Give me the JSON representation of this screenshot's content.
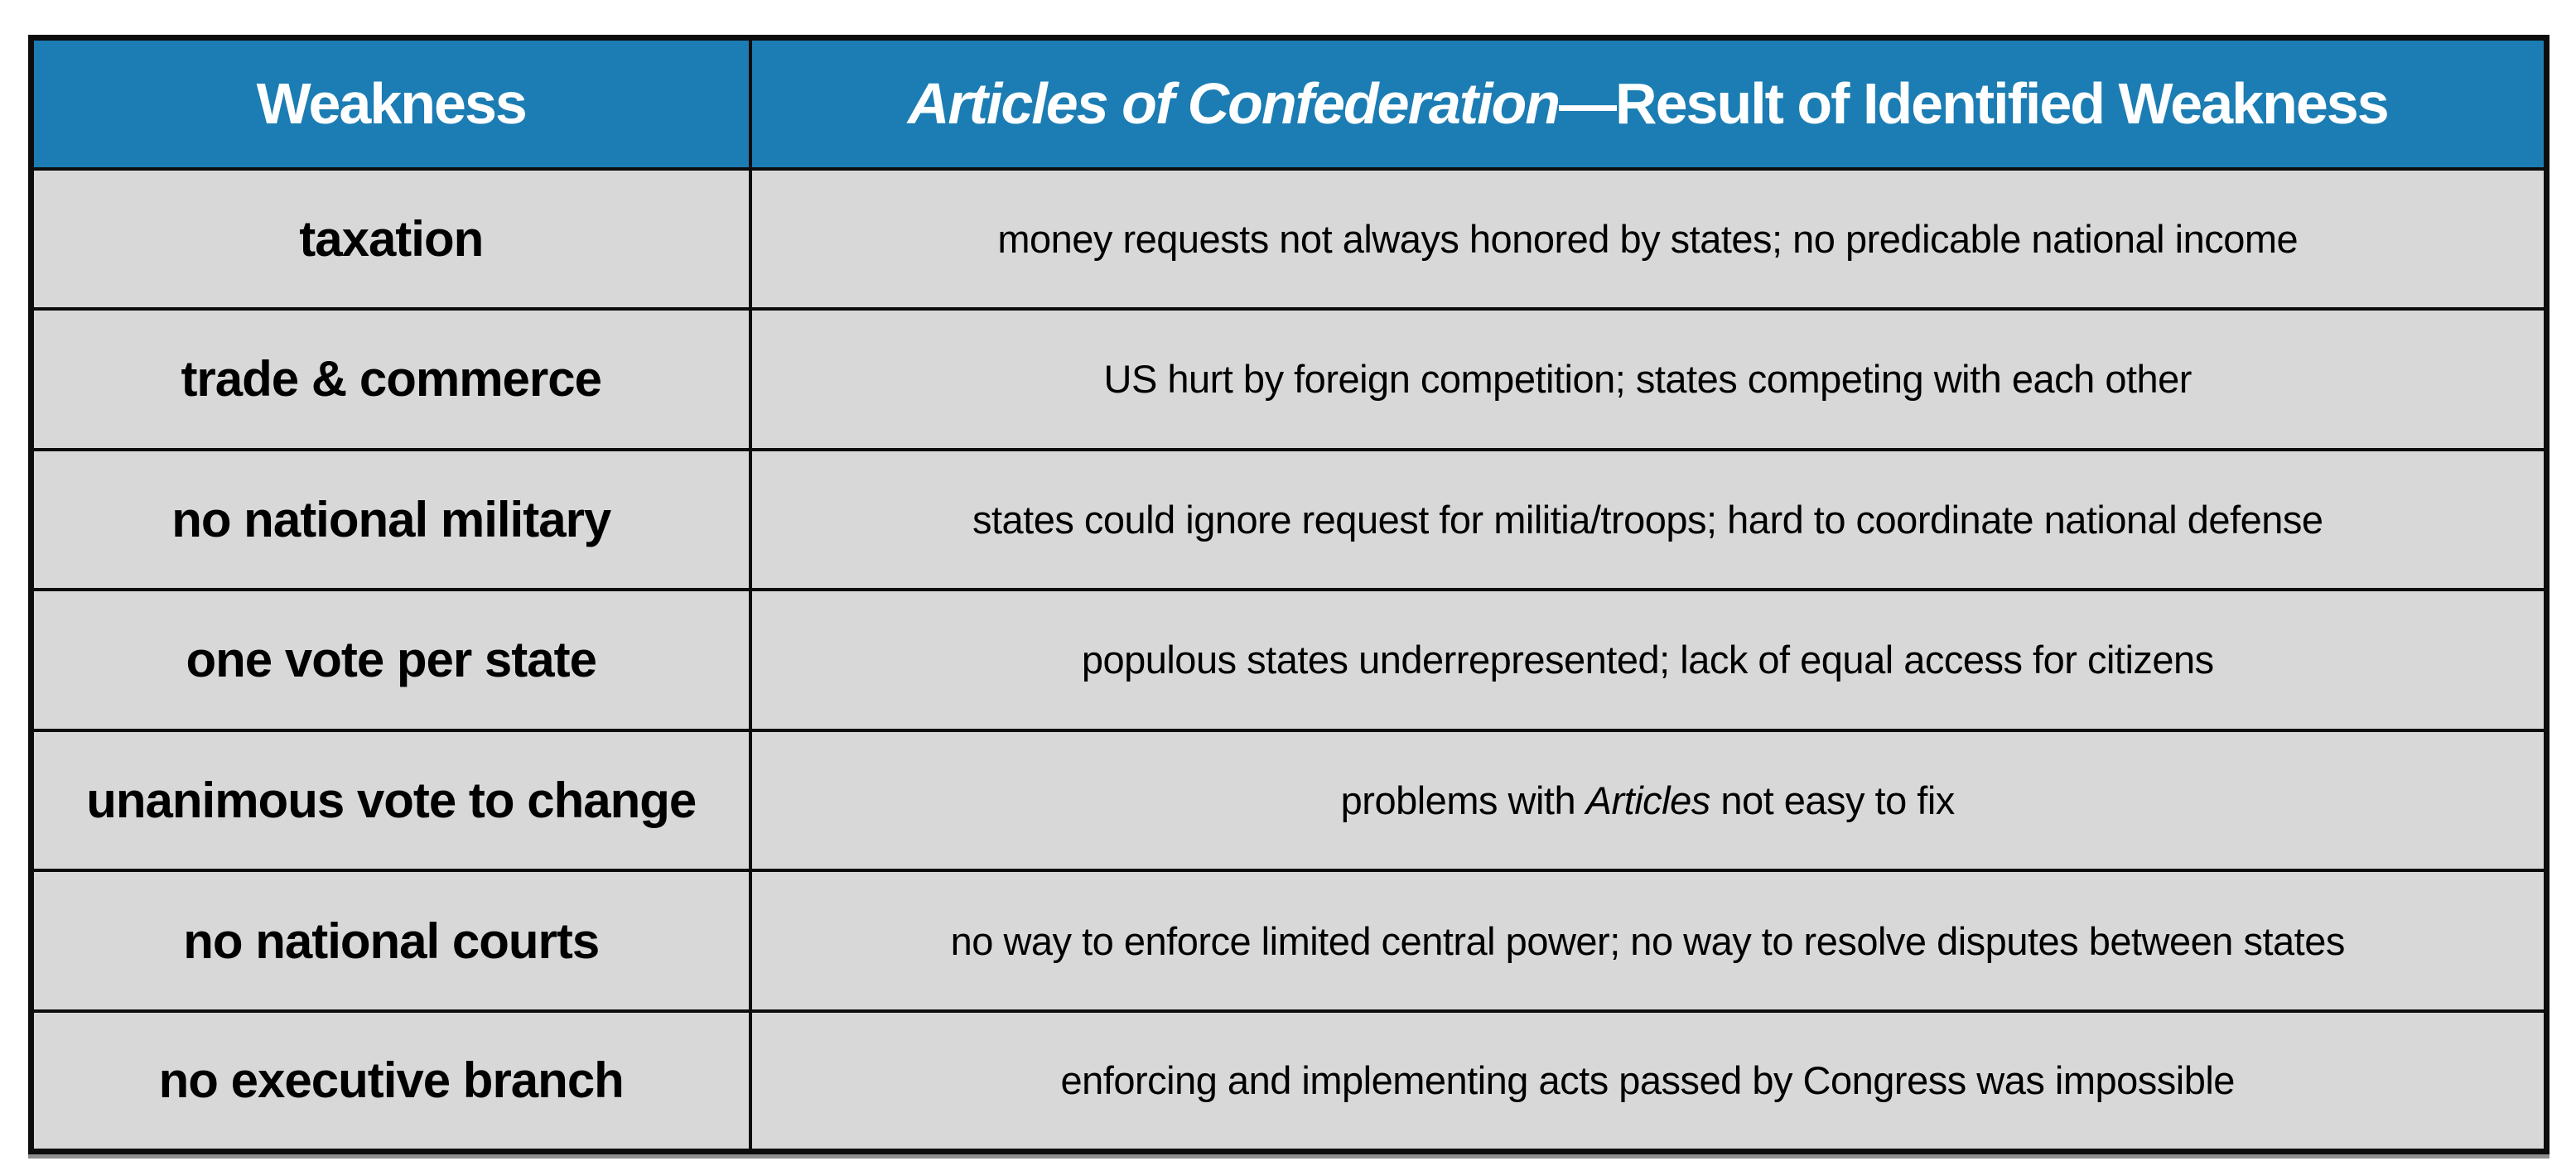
{
  "table": {
    "header": {
      "weakness_label": "Weakness",
      "result_label_segments": [
        {
          "text": "Articles of Confederation",
          "italic": true
        },
        {
          "text": "—Result of Identified Weakness",
          "italic": false
        }
      ]
    },
    "rows": [
      {
        "weakness": "taxation",
        "result_segments": [
          {
            "text": "money requests not always honored by states; no predicable national income",
            "italic": false
          }
        ]
      },
      {
        "weakness": "trade & commerce",
        "result_segments": [
          {
            "text": "US hurt by foreign competition; states competing with each other",
            "italic": false
          }
        ]
      },
      {
        "weakness": "no national military",
        "result_segments": [
          {
            "text": "states could ignore request for militia/troops; hard to coordinate national defense",
            "italic": false
          }
        ]
      },
      {
        "weakness": "one vote per state",
        "result_segments": [
          {
            "text": "populous states underrepresented; lack of equal access for citizens",
            "italic": false
          }
        ]
      },
      {
        "weakness": "unanimous vote to change",
        "result_segments": [
          {
            "text": "problems with ",
            "italic": false
          },
          {
            "text": "Articles",
            "italic": true
          },
          {
            "text": " not easy to fix",
            "italic": false
          }
        ]
      },
      {
        "weakness": "no national courts",
        "result_segments": [
          {
            "text": "no way to enforce limited central power; no way to resolve disputes between states",
            "italic": false
          }
        ]
      },
      {
        "weakness": "no executive branch",
        "result_segments": [
          {
            "text": "enforcing and implementing acts passed by Congress was impossible",
            "italic": false
          }
        ]
      }
    ],
    "colors": {
      "header_bg": "#1b7db3",
      "header_text": "#ffffff",
      "row_bg": "#d8d8d8",
      "border": "#0d0d0d",
      "body_text": "#000000",
      "bottom_shadow": "#8f8f8f"
    }
  }
}
